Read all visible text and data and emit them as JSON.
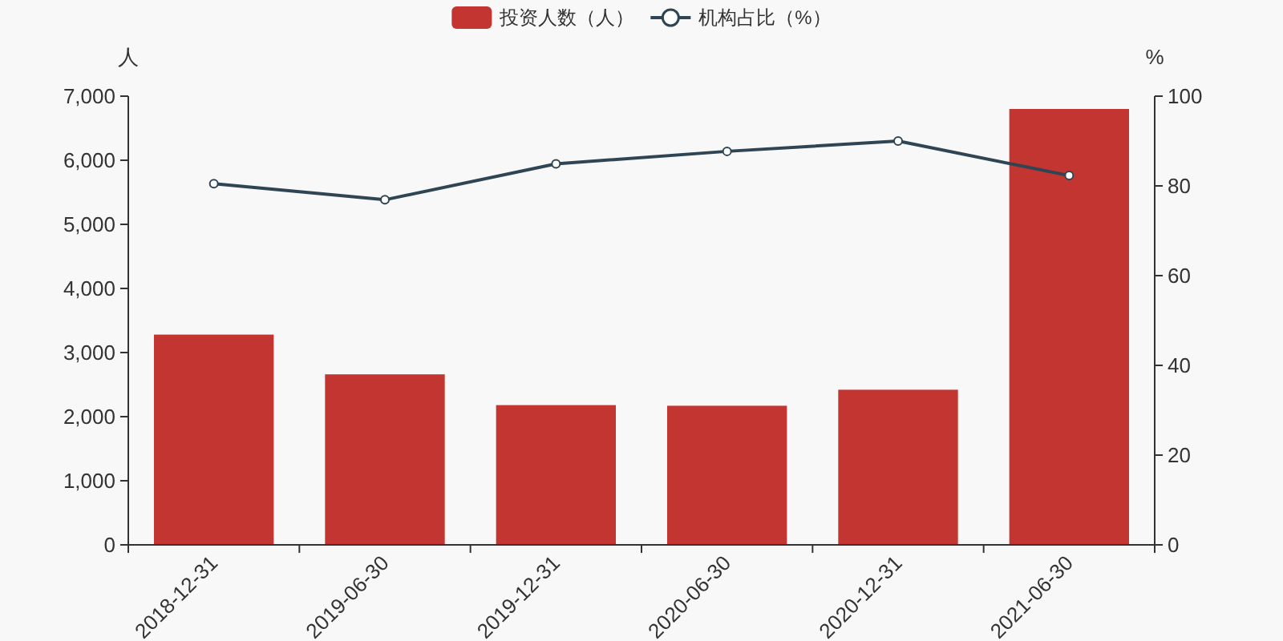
{
  "chart_data": {
    "type": "bar",
    "categories": [
      "2018-12-31",
      "2019-06-30",
      "2019-12-31",
      "2020-06-30",
      "2020-12-31",
      "2021-06-30"
    ],
    "series": [
      {
        "name": "投资人数（人）",
        "color": "#c23531",
        "values": [
          3280,
          2660,
          2180,
          2170,
          2420,
          6800
        ]
      },
      {
        "name": "机构占比（%）",
        "type": "line",
        "axis": "y2",
        "color": "#2f4554",
        "values": [
          80.5,
          76.9,
          84.9,
          87.7,
          90.0,
          82.3
        ]
      }
    ],
    "ylabel": "人",
    "y2label": "%",
    "ylim": [
      0,
      7000
    ],
    "yticks": [
      0,
      {
        "value": 1000,
        "label": "1,000"
      },
      {
        "value": 2000,
        "label": "2,000"
      },
      {
        "value": 3000,
        "label": "3,000"
      },
      {
        "value": 4000,
        "label": "4,000"
      },
      {
        "value": 5000,
        "label": "5,000"
      },
      {
        "value": 6000,
        "label": "6,000"
      },
      {
        "value": 7000,
        "label": "7,000"
      }
    ],
    "y2lim": [
      0,
      100
    ],
    "y2ticks": [
      0,
      20,
      40,
      60,
      80,
      100
    ],
    "legend": "top",
    "marker": "circle"
  }
}
